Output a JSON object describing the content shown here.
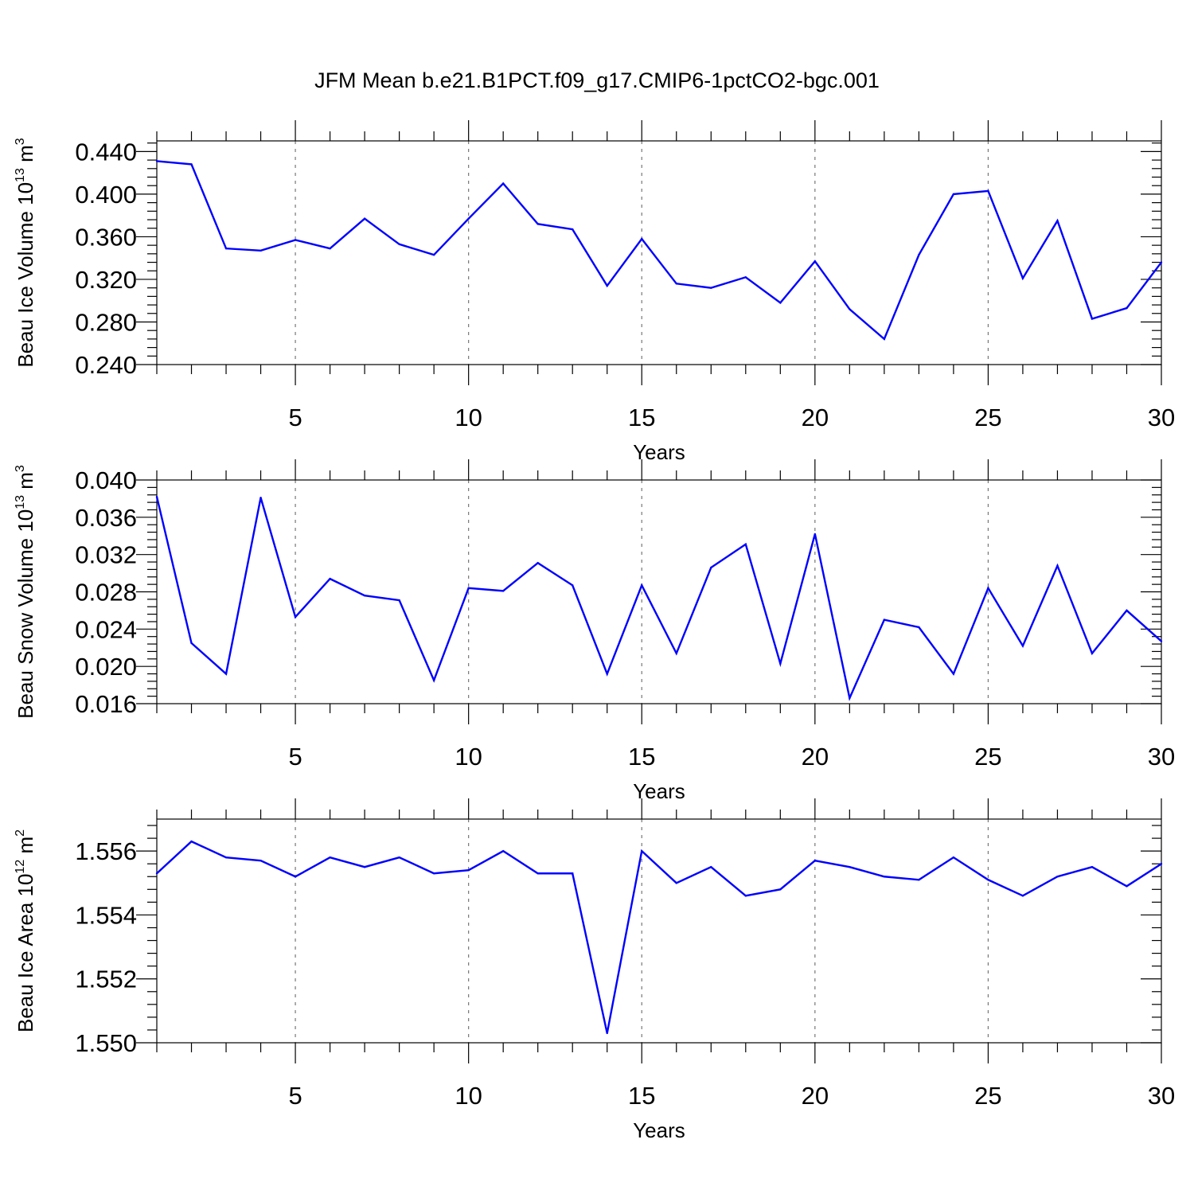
{
  "title": "JFM Mean b.e21.B1PCT.f09_g17.CMIP6-1pctCO2-bgc.001",
  "colors": {
    "line": "#0000ff",
    "grid": "#777777",
    "axis": "#000000"
  },
  "chart_data": [
    {
      "type": "line",
      "ylabel": {
        "prefix": "Beau Ice Volume 10",
        "exponent": "13",
        "unit": " m",
        "unit_exponent": "3"
      },
      "xlabel": "Years",
      "xlim": [
        1,
        30
      ],
      "ylim": [
        0.24,
        0.45
      ],
      "yticks": [
        0.24,
        0.28,
        0.32,
        0.36,
        0.4,
        0.44
      ],
      "ytick_labels": [
        "0.240",
        "0.280",
        "0.320",
        "0.360",
        "0.400",
        "0.440"
      ],
      "xticks": [
        5,
        10,
        15,
        20,
        25,
        30
      ],
      "xtick_labels": [
        "5",
        "10",
        "15",
        "20",
        "25",
        "30"
      ],
      "grid": "vertical-dashed",
      "x": [
        1,
        2,
        3,
        4,
        5,
        6,
        7,
        8,
        9,
        10,
        11,
        12,
        13,
        14,
        15,
        16,
        17,
        18,
        19,
        20,
        21,
        22,
        23,
        24,
        25,
        26,
        27,
        28,
        29,
        30
      ],
      "values": [
        0.431,
        0.428,
        0.349,
        0.347,
        0.357,
        0.349,
        0.377,
        0.353,
        0.343,
        0.377,
        0.41,
        0.372,
        0.367,
        0.314,
        0.358,
        0.316,
        0.312,
        0.322,
        0.298,
        0.337,
        0.292,
        0.264,
        0.343,
        0.4,
        0.403,
        0.321,
        0.375,
        0.283,
        0.293,
        0.336
      ]
    },
    {
      "type": "line",
      "ylabel": {
        "prefix": "Beau Snow Volume 10",
        "exponent": "13",
        "unit": " m",
        "unit_exponent": "3"
      },
      "xlabel": "Years",
      "xlim": [
        1,
        30
      ],
      "ylim": [
        0.016,
        0.04
      ],
      "yticks": [
        0.016,
        0.02,
        0.024,
        0.028,
        0.032,
        0.036,
        0.04
      ],
      "ytick_labels": [
        "0.016",
        "0.020",
        "0.024",
        "0.028",
        "0.032",
        "0.036",
        "0.040"
      ],
      "xticks": [
        5,
        10,
        15,
        20,
        25,
        30
      ],
      "xtick_labels": [
        "5",
        "10",
        "15",
        "20",
        "25",
        "30"
      ],
      "grid": "vertical-dashed",
      "x": [
        1,
        2,
        3,
        4,
        5,
        6,
        7,
        8,
        9,
        10,
        11,
        12,
        13,
        14,
        15,
        16,
        17,
        18,
        19,
        20,
        21,
        22,
        23,
        24,
        25,
        26,
        27,
        28,
        29,
        30
      ],
      "values": [
        0.0382,
        0.0225,
        0.0192,
        0.0381,
        0.0253,
        0.0294,
        0.0276,
        0.0271,
        0.0185,
        0.0284,
        0.0281,
        0.0311,
        0.0287,
        0.0192,
        0.0287,
        0.0214,
        0.0306,
        0.0331,
        0.0203,
        0.0342,
        0.0166,
        0.025,
        0.0242,
        0.0192,
        0.0284,
        0.0222,
        0.0308,
        0.0214,
        0.026,
        0.0227
      ]
    },
    {
      "type": "line",
      "ylabel": {
        "prefix": "Beau Ice Area 10",
        "exponent": "12",
        "unit": " m",
        "unit_exponent": "2"
      },
      "xlabel": "Years",
      "xlim": [
        1,
        30
      ],
      "ylim": [
        1.55,
        1.557
      ],
      "yticks": [
        1.55,
        1.552,
        1.554,
        1.556
      ],
      "ytick_labels": [
        "1.550",
        "1.552",
        "1.554",
        "1.556"
      ],
      "xticks": [
        5,
        10,
        15,
        20,
        25,
        30
      ],
      "xtick_labels": [
        "5",
        "10",
        "15",
        "20",
        "25",
        "30"
      ],
      "grid": "vertical-dashed",
      "x": [
        1,
        2,
        3,
        4,
        5,
        6,
        7,
        8,
        9,
        10,
        11,
        12,
        13,
        14,
        15,
        16,
        17,
        18,
        19,
        20,
        21,
        22,
        23,
        24,
        25,
        26,
        27,
        28,
        29,
        30
      ],
      "values": [
        1.5553,
        1.5563,
        1.5558,
        1.5557,
        1.5552,
        1.5558,
        1.5555,
        1.5558,
        1.5553,
        1.5554,
        1.556,
        1.5553,
        1.5553,
        1.5503,
        1.556,
        1.555,
        1.5555,
        1.5546,
        1.5548,
        1.5557,
        1.5555,
        1.5552,
        1.5551,
        1.5558,
        1.5551,
        1.5546,
        1.5552,
        1.5555,
        1.5549,
        1.5556
      ]
    }
  ]
}
